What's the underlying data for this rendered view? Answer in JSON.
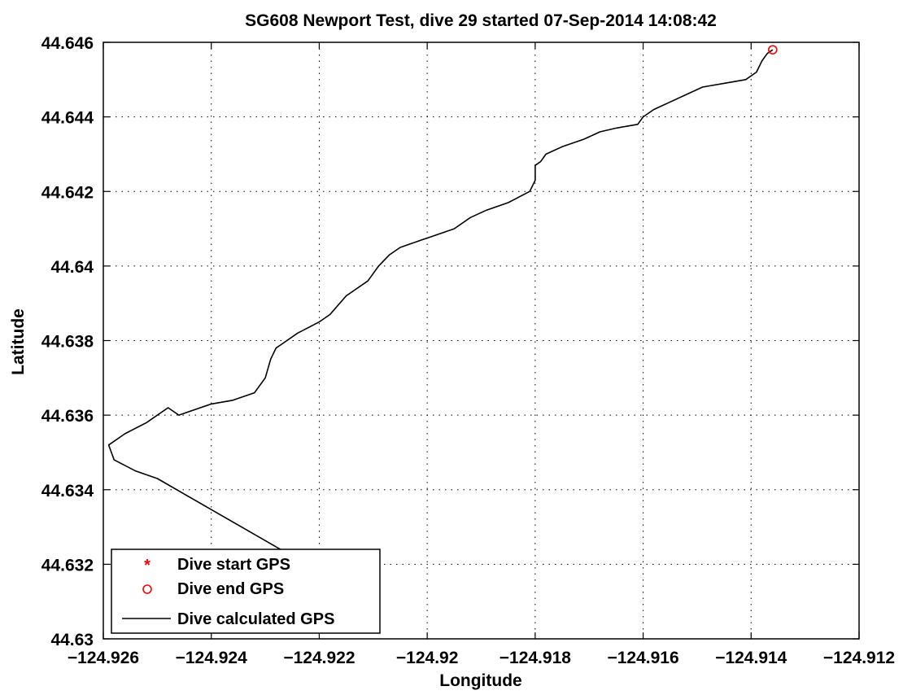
{
  "figure": {
    "title": "SG608 Newport Test, dive 29 started 07-Sep-2014 14:08:42"
  },
  "chart_data": {
    "type": "line",
    "title": "SG608 Newport Test, dive 29 started 07-Sep-2014 14:08:42",
    "xlabel": "Longitude",
    "ylabel": "Latitude",
    "xlim": [
      -124.926,
      -124.912
    ],
    "ylim": [
      44.63,
      44.646
    ],
    "xticks": [
      -124.926,
      -124.924,
      -124.922,
      -124.92,
      -124.918,
      -124.916,
      -124.914,
      -124.912
    ],
    "xtick_labels": [
      "−124.926",
      "−124.924",
      "−124.922",
      "−124.92",
      "−124.918",
      "−124.916",
      "−124.914",
      "−124.912"
    ],
    "yticks": [
      44.63,
      44.632,
      44.634,
      44.636,
      44.638,
      44.64,
      44.642,
      44.644,
      44.646
    ],
    "ytick_labels": [
      "44.63",
      "44.632",
      "44.634",
      "44.636",
      "44.638",
      "44.64",
      "44.642",
      "44.644",
      "44.646"
    ],
    "grid": true,
    "legend_position": "bottom-left",
    "legend": [
      {
        "label": "Dive start GPS",
        "marker": "asterisk",
        "color": "#ff0000"
      },
      {
        "label": "Dive end GPS",
        "marker": "circle",
        "color": "#ff0000"
      },
      {
        "label": "Dive calculated GPS",
        "marker": "line",
        "color": "#000000"
      }
    ],
    "series": [
      {
        "name": "Dive calculated GPS",
        "color": "#000000",
        "x": [
          -124.9226,
          -124.9232,
          -124.9238,
          -124.9244,
          -124.925,
          -124.9254,
          -124.9258,
          -124.9259,
          -124.9256,
          -124.9252,
          -124.9248,
          -124.9246,
          -124.9244,
          -124.924,
          -124.9236,
          -124.9232,
          -124.923,
          -124.9229,
          -124.9228,
          -124.9227,
          -124.9224,
          -124.922,
          -124.9218,
          -124.9215,
          -124.9211,
          -124.9209,
          -124.9207,
          -124.9205,
          -124.9203,
          -124.9201,
          -124.9199,
          -124.9195,
          -124.9192,
          -124.9189,
          -124.9185,
          -124.9181,
          -124.918,
          -124.918,
          -124.9179,
          -124.9178,
          -124.9175,
          -124.9171,
          -124.9168,
          -124.9165,
          -124.9161,
          -124.916,
          -124.9158,
          -124.9155,
          -124.9152,
          -124.9149,
          -124.9145,
          -124.9141,
          -124.9139,
          -124.9138,
          -124.9137,
          -124.9136
        ],
        "y": [
          44.6323,
          44.6328,
          44.6333,
          44.6338,
          44.6343,
          44.6345,
          44.6348,
          44.6352,
          44.6355,
          44.6358,
          44.6362,
          44.636,
          44.6361,
          44.6363,
          44.6364,
          44.6366,
          44.637,
          44.6375,
          44.6378,
          44.6379,
          44.6382,
          44.6385,
          44.6387,
          44.6392,
          44.6396,
          44.64,
          44.6403,
          44.6405,
          44.6406,
          44.6407,
          44.6408,
          44.641,
          44.6413,
          44.6415,
          44.6417,
          44.642,
          44.6423,
          44.6427,
          44.6428,
          44.643,
          44.6432,
          44.6434,
          44.6436,
          44.6437,
          44.6438,
          44.644,
          44.6442,
          44.6444,
          44.6446,
          44.6448,
          44.6449,
          44.645,
          44.6452,
          44.6455,
          44.6457,
          44.6458
        ]
      }
    ],
    "markers": [
      {
        "name": "Dive end GPS",
        "marker": "circle",
        "color": "#ff0000",
        "x": -124.9136,
        "y": 44.6458
      }
    ]
  }
}
